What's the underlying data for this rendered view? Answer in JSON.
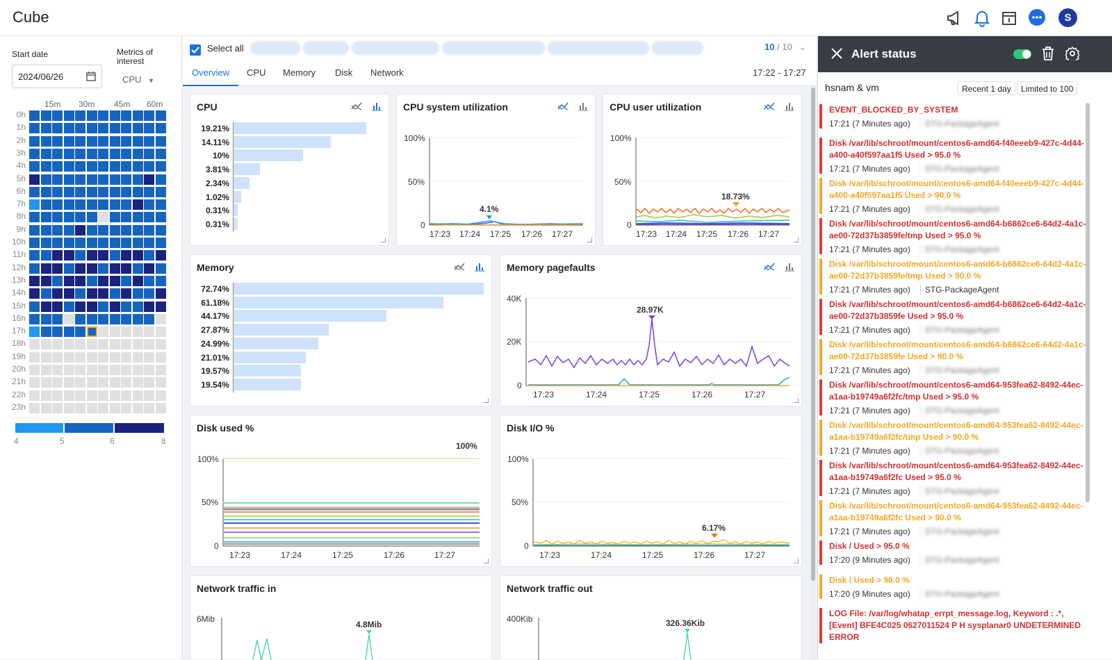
{
  "app": {
    "title": "Cube"
  },
  "header_icons": [
    "megaphone-icon",
    "bell-icon",
    "calendar-info-icon",
    "chat-icon"
  ],
  "user": {
    "initial": "S"
  },
  "left_panel": {
    "start_date_label": "Start date",
    "start_date_value": "2024/06/26",
    "metrics_label": "Metrics of interest",
    "metrics_value": "CPU",
    "heatmap_cols": [
      "15m",
      "30m",
      "45m",
      "60m"
    ],
    "heatmap_rows": [
      "0h",
      "1h",
      "2h",
      "3h",
      "4h",
      "5h",
      "6h",
      "7h",
      "8h",
      "9h",
      "10h",
      "11h",
      "12h",
      "13h",
      "14h",
      "15h",
      "16h",
      "17h",
      "18h",
      "19h",
      "20h",
      "21h",
      "22h",
      "23h"
    ],
    "legend": [
      "4",
      "5",
      "6",
      "8"
    ],
    "colors": {
      "level4": "#2196f3",
      "level5": "#1565c0",
      "level6": "#1a237e",
      "empty": "#e0e0e0",
      "selected": "#f9a825"
    }
  },
  "toolbar": {
    "select_all": "Select all",
    "count_selected": "10",
    "count_total": "/ 10"
  },
  "tabs": [
    "Overview",
    "CPU",
    "Memory",
    "Disk",
    "Network"
  ],
  "time_range": "17:22 - 17:27",
  "cards": {
    "cpu": {
      "title": "CPU",
      "values": [
        "19.21%",
        "14.11%",
        "10%",
        "3.81%",
        "2.34%",
        "1.02%",
        "0.31%",
        "0.31%"
      ],
      "fractions": [
        0.9,
        0.66,
        0.47,
        0.18,
        0.11,
        0.05,
        0.015,
        0.015
      ]
    },
    "cpu_system": {
      "title": "CPU system utilization",
      "annotation": "4.1%"
    },
    "cpu_user": {
      "title": "CPU user utilization",
      "annotation": "18.73%"
    },
    "memory": {
      "title": "Memory",
      "values": [
        "72.74%",
        "61.18%",
        "44.17%",
        "27.87%",
        "24.99%",
        "21.01%",
        "19.57%",
        "19.54%"
      ],
      "fractions": [
        1.0,
        0.84,
        0.61,
        0.38,
        0.34,
        0.29,
        0.27,
        0.27
      ]
    },
    "memory_pagefaults": {
      "title": "Memory pagefaults",
      "annotation": "28.97K"
    },
    "disk_used": {
      "title": "Disk used %",
      "annotation": "100%"
    },
    "disk_io": {
      "title": "Disk I/O %",
      "annotation": "6.17%"
    },
    "net_in": {
      "title": "Network traffic in",
      "annotation": "4.8Mib",
      "ytop": "6Mib"
    },
    "net_out": {
      "title": "Network traffic out",
      "annotation": "326.36Kib",
      "ytop": "400Kib"
    }
  },
  "chart_data": [
    {
      "type": "bar",
      "title": "CPU",
      "values": [
        19.21,
        14.11,
        10,
        3.81,
        2.34,
        1.02,
        0.31,
        0.31
      ]
    },
    {
      "type": "line",
      "title": "CPU system utilization",
      "ylabels": [
        "100%",
        "50%",
        "0"
      ],
      "x": [
        "17:23",
        "17:24",
        "17:25",
        "17:26",
        "17:27"
      ],
      "annotation": "4.1%"
    },
    {
      "type": "line",
      "title": "CPU user utilization",
      "ylabels": [
        "100%",
        "50%",
        "0"
      ],
      "x": [
        "17:23",
        "17:24",
        "17:25",
        "17:26",
        "17:27"
      ],
      "annotation": "18.73%"
    },
    {
      "type": "bar",
      "title": "Memory",
      "values": [
        72.74,
        61.18,
        44.17,
        27.87,
        24.99,
        21.01,
        19.57,
        19.54
      ]
    },
    {
      "type": "line",
      "title": "Memory pagefaults",
      "ylabels": [
        "40K",
        "20K",
        "0"
      ],
      "x": [
        "17:23",
        "17:24",
        "17:25",
        "17:26",
        "17:27"
      ],
      "annotation": "28.97K"
    },
    {
      "type": "line",
      "title": "Disk used %",
      "ylabels": [
        "100%",
        "50%",
        "0"
      ],
      "x": [
        "17:23",
        "17:24",
        "17:25",
        "17:26",
        "17:27"
      ],
      "annotation": "100%"
    },
    {
      "type": "line",
      "title": "Disk I/O %",
      "ylabels": [
        "100%",
        "50%",
        "0"
      ],
      "x": [
        "17:23",
        "17:24",
        "17:25",
        "17:26",
        "17:27"
      ],
      "annotation": "6.17%"
    }
  ],
  "alert_panel": {
    "title": "Alert status",
    "host": "hsnam & vm",
    "filter_recent": "Recent 1 day",
    "filter_limit": "Limited to 100",
    "alerts": [
      {
        "level": "red",
        "message": "EVENT_BLOCKED_BY_SYSTEM",
        "time": "17:21 (7 Minutes ago)",
        "agent": "STG-PackageAgent",
        "blur": true
      },
      {
        "level": "red",
        "message": "Disk /var/lib/schroot/mount/centos6-amd64-f40eeeb9-427c-4d44-a400-a40f597aa1f5 Used > 95.0 %",
        "time": "17:21 (7 Minutes ago)",
        "agent": "STG-PackageAgent",
        "blur": true
      },
      {
        "level": "orange",
        "message": "Disk /var/lib/schroot/mount/centos6-amd64-f40eeeb9-427c-4d44-a400-a40f597aa1f5 Used > 90.0 %",
        "time": "17:21 (7 Minutes ago)",
        "agent": "STG-PackageAgent",
        "blur": true
      },
      {
        "level": "red",
        "message": "Disk /var/lib/schroot/mount/centos6-amd64-b6862ce6-64d2-4a1c-ae00-72d37b3859fe/tmp Used > 95.0 %",
        "time": "17:21 (7 Minutes ago)",
        "agent": "STG-PackageAgent",
        "blur": true
      },
      {
        "level": "orange",
        "message": "Disk /var/lib/schroot/mount/centos6-amd64-b6862ce6-64d2-4a1c-ae00-72d37b3859fe/tmp Used > 90.0 %",
        "time": "17:21 (7 Minutes ago)",
        "agent": "STG-PackageAgent",
        "blur": false
      },
      {
        "level": "red",
        "message": "Disk /var/lib/schroot/mount/centos6-amd64-b6862ce6-64d2-4a1c-ae00-72d37b3859fe Used > 95.0 %",
        "time": "17:21 (7 Minutes ago)",
        "agent": "STG-PackageAgent",
        "blur": true
      },
      {
        "level": "orange",
        "message": "Disk /var/lib/schroot/mount/centos6-amd64-b6862ce6-64d2-4a1c-ae00-72d37b3859fe Used > 90.0 %",
        "time": "17:21 (7 Minutes ago)",
        "agent": "STG-PackageAgent",
        "blur": true
      },
      {
        "level": "red",
        "message": "Disk /var/lib/schroot/mount/centos6-amd64-953fea62-8492-44ec-a1aa-b19749a6f2fc/tmp Used > 95.0 %",
        "time": "17:21 (7 Minutes ago)",
        "agent": "STG-PackageAgent",
        "blur": true
      },
      {
        "level": "orange",
        "message": "Disk /var/lib/schroot/mount/centos6-amd64-953fea62-8492-44ec-a1aa-b19749a6f2fc/tmp Used > 90.0 %",
        "time": "17:21 (7 Minutes ago)",
        "agent": "STG-PackageAgent",
        "blur": true
      },
      {
        "level": "red",
        "message": "Disk /var/lib/schroot/mount/centos6-amd64-953fea62-8492-44ec-a1aa-b19749a6f2fc Used > 95.0 %",
        "time": "17:21 (7 Minutes ago)",
        "agent": "STG-PackageAgent",
        "blur": true
      },
      {
        "level": "orange",
        "message": "Disk /var/lib/schroot/mount/centos6-amd64-953fea62-8492-44ec-a1aa-b19749a6f2fc Used > 90.0 %",
        "time": "17:21 (7 Minutes ago)",
        "agent": "STG-PackageAgent",
        "blur": true
      },
      {
        "level": "red",
        "message": "Disk / Used > 95.0 %",
        "time": "17:20 (9 Minutes ago)",
        "agent": "STG-PackageAgent",
        "blur": true
      },
      {
        "level": "orange",
        "message": "Disk / Used > 90.0 %",
        "time": "17:20 (9 Minutes ago)",
        "agent": "STG-PackageAgent",
        "blur": true
      },
      {
        "level": "red",
        "message": "LOG File: /var/log/whatap_errpt_message.log, Keyword : .*, [Event] BFE4C025 0627011524 P H sysplanar0 UNDETERMINED ERROR",
        "time": "",
        "agent": "",
        "blur": true
      }
    ]
  }
}
